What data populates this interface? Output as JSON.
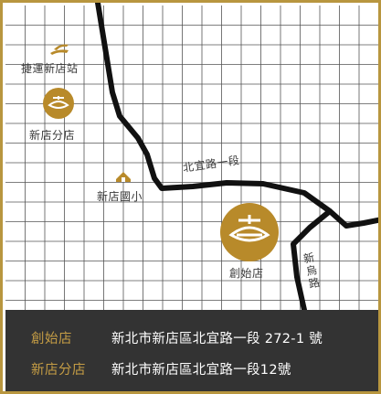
{
  "colors": {
    "frame": "#b8963f",
    "grid": "#555555",
    "road": "#111111",
    "marker": "#b88a2a",
    "footer_bg": "#333333",
    "footer_name": "#c59d45",
    "footer_text": "#ffffff"
  },
  "map": {
    "landmarks": {
      "mrt_station": {
        "label": "捷運新店站",
        "icon": "mrt-logo-icon"
      },
      "branch_store": {
        "label": "新店分店",
        "icon": "store-logo-icon"
      },
      "school": {
        "label": "新店國小",
        "icon": "school-icon"
      },
      "flagship_store": {
        "label": "創始店",
        "icon": "store-logo-icon"
      }
    },
    "roads": {
      "beiyi": "北宜路一段",
      "xinwu": "新烏路"
    }
  },
  "footer": {
    "stores": [
      {
        "name": "創始店",
        "address": "新北市新店區北宜路一段 272-1 號"
      },
      {
        "name": "新店分店",
        "address": "新北市新店區北宜路一段12號"
      }
    ]
  }
}
